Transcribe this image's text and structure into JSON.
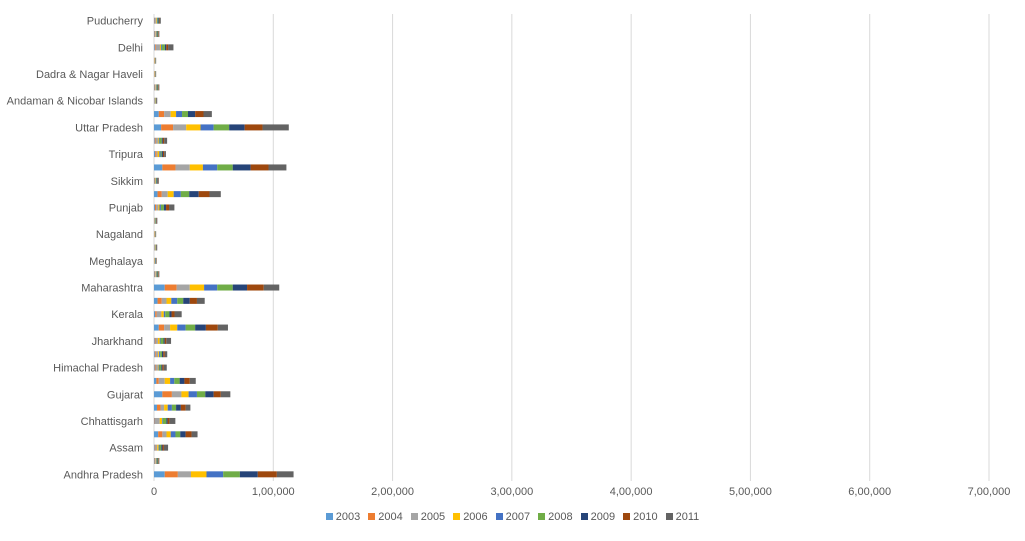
{
  "chart_data": {
    "type": "bar",
    "orientation": "horizontal",
    "stacked": true,
    "title": "",
    "xlabel": "",
    "ylabel": "",
    "xlim": [
      0,
      700000
    ],
    "x_tick_labels": [
      "0",
      "1,00,000",
      "2,00,000",
      "3,00,000",
      "4,00,000",
      "5,00,000",
      "6,00,000",
      "7,00,000"
    ],
    "grid": true,
    "legend_position": "bottom",
    "categories": [
      "Andhra Pradesh",
      "",
      "Assam",
      "",
      "Chhattisgarh",
      "",
      "Gujarat",
      "",
      "Himachal Pradesh",
      "",
      "Jharkhand",
      "",
      "Kerala",
      "",
      "Maharashtra",
      "",
      "Meghalaya",
      "",
      "Nagaland",
      "",
      "Punjab",
      "",
      "Sikkim",
      "",
      "Tripura",
      "",
      "Uttar Pradesh",
      "",
      "Andaman & Nicobar Islands",
      "",
      "Dadra & Nagar Haveli",
      "",
      "Delhi",
      "",
      "Puducherry"
    ],
    "series": [
      {
        "name": "2003",
        "color": "#5B9BD5",
        "values": [
          9000,
          500,
          600,
          3500,
          400,
          2500,
          7000,
          2000,
          600,
          700,
          600,
          4000,
          1000,
          3000,
          9000,
          500,
          200,
          300,
          200,
          200,
          800,
          3000,
          400,
          7000,
          1000,
          600,
          6000,
          4000,
          300,
          500,
          200,
          200,
          700,
          500,
          500
        ]
      },
      {
        "name": "2004",
        "color": "#ED7D31",
        "values": [
          11000,
          500,
          600,
          3500,
          400,
          3000,
          8000,
          2000,
          700,
          800,
          700,
          4500,
          1200,
          3500,
          10000,
          500,
          200,
          300,
          200,
          200,
          900,
          3500,
          400,
          11000,
          1000,
          700,
          10000,
          4500,
          300,
          500,
          200,
          200,
          800,
          500,
          500
        ]
      },
      {
        "name": "2005",
        "color": "#A5A5A5",
        "values": [
          11000,
          500,
          1500,
          3500,
          4000,
          3000,
          8000,
          5000,
          2000,
          2000,
          2000,
          5000,
          4000,
          4000,
          11000,
          500,
          200,
          300,
          200,
          400,
          2000,
          5000,
          400,
          12000,
          1000,
          2000,
          11000,
          5500,
          300,
          500,
          200,
          200,
          3500,
          500,
          1000
        ]
      },
      {
        "name": "2006",
        "color": "#FFC000",
        "values": [
          13000,
          500,
          1200,
          3500,
          2000,
          3000,
          6000,
          4500,
          600,
          800,
          1500,
          6000,
          2000,
          4000,
          12000,
          500,
          200,
          300,
          200,
          200,
          900,
          5000,
          400,
          11000,
          1500,
          700,
          12000,
          4500,
          300,
          500,
          200,
          200,
          800,
          500,
          500
        ]
      },
      {
        "name": "2007",
        "color": "#4472C4",
        "values": [
          14000,
          500,
          700,
          4000,
          600,
          3500,
          7000,
          3500,
          700,
          900,
          700,
          7000,
          1200,
          5000,
          11000,
          500,
          300,
          300,
          200,
          300,
          1200,
          6000,
          500,
          12000,
          1000,
          700,
          11000,
          5000,
          300,
          500,
          200,
          200,
          800,
          500,
          500
        ]
      },
      {
        "name": "2008",
        "color": "#70AD47",
        "values": [
          14000,
          500,
          1500,
          4000,
          3000,
          3500,
          7000,
          4500,
          1500,
          1500,
          2500,
          8000,
          3500,
          5000,
          13000,
          500,
          300,
          300,
          200,
          400,
          2500,
          7000,
          500,
          13000,
          1000,
          1800,
          13000,
          5000,
          300,
          500,
          200,
          200,
          2500,
          500,
          700
        ]
      },
      {
        "name": "2009",
        "color": "#264478",
        "values": [
          15000,
          500,
          1000,
          4500,
          1000,
          4000,
          7000,
          4000,
          900,
          1100,
          1000,
          9000,
          1800,
          5500,
          12000,
          500,
          300,
          300,
          200,
          300,
          1800,
          8000,
          500,
          15000,
          1000,
          900,
          13000,
          6000,
          300,
          500,
          200,
          200,
          1200,
          500,
          500
        ]
      },
      {
        "name": "2010",
        "color": "#9E480E",
        "values": [
          16000,
          500,
          1200,
          5000,
          1500,
          4000,
          6000,
          4500,
          1200,
          1300,
          1300,
          10000,
          2500,
          6000,
          14000,
          500,
          300,
          300,
          200,
          400,
          2500,
          9000,
          500,
          15000,
          1000,
          1100,
          15000,
          7000,
          300,
          500,
          200,
          200,
          1500,
          500,
          500
        ]
      },
      {
        "name": "2011",
        "color": "#636363",
        "values": [
          14000,
          500,
          3500,
          5000,
          5000,
          4000,
          8000,
          5000,
          2500,
          2000,
          4000,
          8500,
          6000,
          6500,
          13000,
          500,
          300,
          300,
          200,
          400,
          4500,
          9500,
          500,
          15000,
          1500,
          2500,
          22000,
          7000,
          300,
          500,
          200,
          200,
          4500,
          500,
          1000
        ]
      }
    ]
  }
}
